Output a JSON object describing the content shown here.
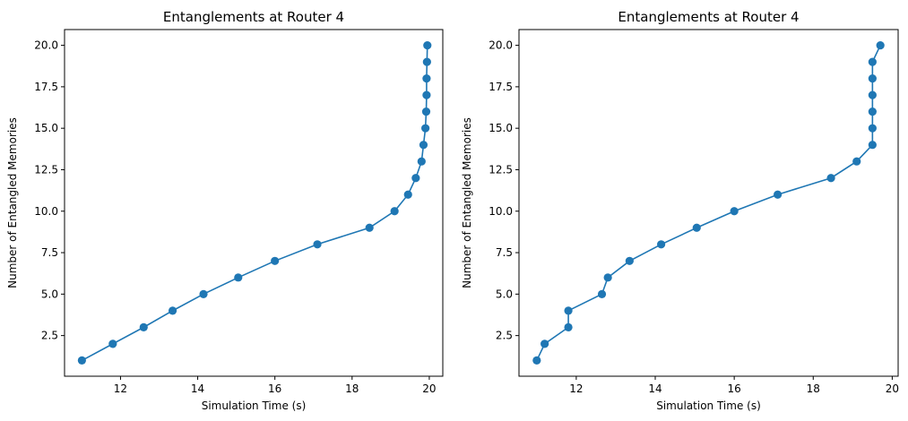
{
  "chart_data": [
    {
      "type": "line",
      "title": "Entanglements at Router 4",
      "xlabel": "Simulation Time (s)",
      "ylabel": "Number of Entangled Memories",
      "xlim": [
        10.55,
        20.35
      ],
      "ylim": [
        0.05,
        20.95
      ],
      "xticks": [
        12,
        14,
        16,
        18,
        20
      ],
      "xtick_labels": [
        "12",
        "14",
        "16",
        "18",
        "20"
      ],
      "yticks": [
        2.5,
        5.0,
        7.5,
        10.0,
        12.5,
        15.0,
        17.5,
        20.0
      ],
      "ytick_labels": [
        "2.5",
        "5.0",
        "7.5",
        "10.0",
        "12.5",
        "15.0",
        "17.5",
        "20.0"
      ],
      "grid": false,
      "color": "#1f77b4",
      "marker": "circle",
      "series": [
        {
          "x": [
            11.0,
            11.8,
            12.6,
            13.35,
            14.15,
            15.05,
            16.0,
            17.1,
            18.45,
            19.1,
            19.45,
            19.65,
            19.8,
            19.85,
            19.9,
            19.92,
            19.93,
            19.93,
            19.94,
            19.95
          ],
          "y": [
            1,
            2,
            3,
            4,
            5,
            6,
            7,
            8,
            9,
            10,
            11,
            12,
            13,
            14,
            15,
            16,
            17,
            18,
            19,
            20
          ]
        }
      ]
    },
    {
      "type": "line",
      "title": "Entanglements at Router 4",
      "xlabel": "Simulation Time (s)",
      "ylabel": "Number of Entangled Memories",
      "xlim": [
        10.55,
        20.15
      ],
      "ylim": [
        0.05,
        20.95
      ],
      "xticks": [
        12,
        14,
        16,
        18,
        20
      ],
      "xtick_labels": [
        "12",
        "14",
        "16",
        "18",
        "20"
      ],
      "yticks": [
        2.5,
        5.0,
        7.5,
        10.0,
        12.5,
        15.0,
        17.5,
        20.0
      ],
      "ytick_labels": [
        "2.5",
        "5.0",
        "7.5",
        "10.0",
        "12.5",
        "15.0",
        "17.5",
        "20.0"
      ],
      "grid": false,
      "color": "#1f77b4",
      "marker": "circle",
      "series": [
        {
          "x": [
            11.0,
            11.2,
            11.8,
            11.8,
            12.65,
            12.8,
            13.35,
            14.15,
            15.05,
            16.0,
            17.1,
            18.45,
            19.1,
            19.5,
            19.5,
            19.5,
            19.5,
            19.5,
            19.5,
            19.7
          ],
          "y": [
            1,
            2,
            3,
            4,
            5,
            6,
            7,
            8,
            9,
            10,
            11,
            12,
            13,
            14,
            15,
            16,
            17,
            18,
            19,
            20
          ]
        }
      ]
    }
  ]
}
